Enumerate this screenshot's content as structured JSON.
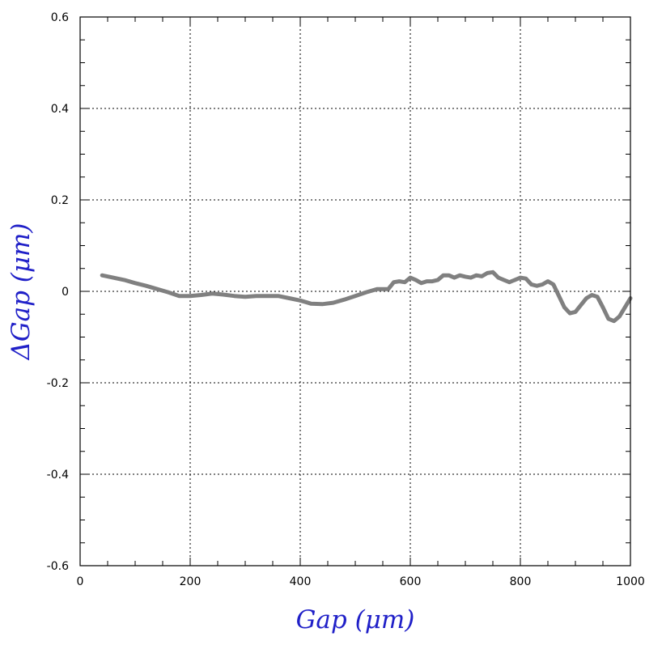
{
  "chart_data": {
    "type": "line",
    "xlabel": "Gap  (μm)",
    "ylabel": "ΔGap  (μm)",
    "xlim": [
      0,
      1000
    ],
    "ylim": [
      -0.6,
      0.6
    ],
    "x_ticks": [
      0,
      200,
      400,
      600,
      800,
      1000
    ],
    "y_ticks": [
      -0.6,
      -0.4,
      -0.2,
      0,
      0.2,
      0.4,
      0.6
    ],
    "x_tick_labels": [
      "0",
      "200",
      "400",
      "600",
      "800",
      "1000"
    ],
    "y_tick_labels": [
      "-0.6",
      "-0.4",
      "-0.2",
      "0",
      "0.2",
      "0.4",
      "0.6"
    ],
    "grid": true,
    "series_color": "#808080",
    "series": [
      {
        "x": [
          40,
          60,
          80,
          100,
          120,
          140,
          160,
          180,
          200,
          220,
          240,
          260,
          280,
          300,
          320,
          340,
          360,
          380,
          400,
          420,
          440,
          460,
          480,
          500,
          520,
          540,
          560,
          570,
          580,
          590,
          600,
          610,
          620,
          630,
          640,
          650,
          660,
          670,
          680,
          690,
          700,
          710,
          720,
          730,
          740,
          750,
          760,
          770,
          780,
          790,
          800,
          810,
          820,
          830,
          840,
          850,
          860,
          870,
          880,
          890,
          900,
          910,
          920,
          930,
          940,
          950,
          960,
          970,
          980,
          990,
          1000
        ],
        "y": [
          0.035,
          0.03,
          0.025,
          0.018,
          0.012,
          0.005,
          -0.002,
          -0.01,
          -0.01,
          -0.008,
          -0.005,
          -0.007,
          -0.01,
          -0.012,
          -0.01,
          -0.01,
          -0.01,
          -0.015,
          -0.02,
          -0.027,
          -0.028,
          -0.025,
          -0.018,
          -0.01,
          -0.002,
          0.005,
          0.005,
          0.02,
          0.022,
          0.02,
          0.03,
          0.025,
          0.018,
          0.022,
          0.022,
          0.025,
          0.035,
          0.035,
          0.03,
          0.035,
          0.032,
          0.03,
          0.035,
          0.033,
          0.04,
          0.042,
          0.03,
          0.025,
          0.02,
          0.025,
          0.03,
          0.028,
          0.015,
          0.012,
          0.015,
          0.022,
          0.015,
          -0.01,
          -0.035,
          -0.048,
          -0.045,
          -0.03,
          -0.015,
          -0.008,
          -0.012,
          -0.035,
          -0.06,
          -0.065,
          -0.055,
          -0.035,
          -0.015
        ]
      }
    ]
  }
}
